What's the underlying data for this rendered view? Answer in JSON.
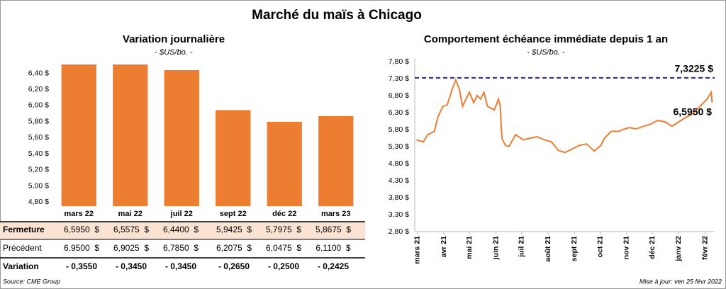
{
  "title": "Marché du maïs à Chicago",
  "chart_data": [
    {
      "type": "bar",
      "title": "Variation journalière",
      "subtitle": "- $US/bo. -",
      "categories": [
        "mars 22",
        "mai 22",
        "juil 22",
        "sept 22",
        "déc 22",
        "mars 23"
      ],
      "values": [
        6.595,
        6.5575,
        6.44,
        5.9425,
        5.7975,
        5.8675
      ],
      "color": "#ed7d31",
      "ylim": [
        4.75,
        6.51
      ],
      "yticks": [
        {
          "value": 4.8,
          "label": "4,80 $"
        },
        {
          "value": 5.0,
          "label": "5,00 $"
        },
        {
          "value": 5.2,
          "label": "5,20 $"
        },
        {
          "value": 5.4,
          "label": "5,40 $"
        },
        {
          "value": 5.6,
          "label": "5,60 $"
        },
        {
          "value": 5.8,
          "label": "5,80 $"
        },
        {
          "value": 6.0,
          "label": "6,00 $"
        },
        {
          "value": 6.2,
          "label": "6,20 $"
        },
        {
          "value": 6.4,
          "label": "6,40 $"
        }
      ]
    },
    {
      "type": "line",
      "title": "Comportement échéance immédiate depuis 1 an",
      "subtitle": "- $US/bo. -",
      "x": [
        -1,
        7,
        12,
        20,
        24,
        30,
        35,
        41,
        45,
        49,
        53,
        57,
        61,
        66,
        70,
        74,
        78,
        82,
        90,
        95,
        97,
        99,
        103,
        107,
        115,
        124,
        132,
        140,
        149,
        157,
        165,
        173,
        182,
        190,
        198,
        207,
        215,
        219,
        227,
        236,
        240,
        248,
        256,
        265,
        273,
        281,
        290,
        298,
        306,
        315,
        323,
        331,
        339,
        344,
        345
      ],
      "series": [
        {
          "color": "#ed7d31",
          "values": [
            5.5,
            5.44,
            5.65,
            5.75,
            6.17,
            6.49,
            6.53,
            7.0,
            7.26,
            7.0,
            6.49,
            6.7,
            6.9,
            6.59,
            6.8,
            6.7,
            6.9,
            6.49,
            6.38,
            6.7,
            6.49,
            5.55,
            5.34,
            5.3,
            5.65,
            5.5,
            5.55,
            5.59,
            5.5,
            5.44,
            5.19,
            5.13,
            5.24,
            5.34,
            5.38,
            5.17,
            5.34,
            5.55,
            5.75,
            5.75,
            5.8,
            5.86,
            5.82,
            5.9,
            5.96,
            6.07,
            6.03,
            5.9,
            6.03,
            6.17,
            6.28,
            6.49,
            6.7,
            6.9,
            6.595
          ]
        }
      ],
      "xlim": [
        -3,
        348
      ],
      "xticks": [
        {
          "value": 0,
          "label": "mars 21"
        },
        {
          "value": 31,
          "label": "avr 21"
        },
        {
          "value": 61,
          "label": "mai 21"
        },
        {
          "value": 92,
          "label": "juin 21"
        },
        {
          "value": 122,
          "label": "juil 21"
        },
        {
          "value": 153,
          "label": "août 21"
        },
        {
          "value": 184,
          "label": "sept 21"
        },
        {
          "value": 214,
          "label": "oct 21"
        },
        {
          "value": 245,
          "label": "nov 21"
        },
        {
          "value": 275,
          "label": "déc 21"
        },
        {
          "value": 306,
          "label": "janv 22"
        },
        {
          "value": 337,
          "label": "févr 22"
        }
      ],
      "ylim": [
        2.8,
        7.8
      ],
      "yticks": [
        {
          "value": 2.8,
          "label": "2,80 $"
        },
        {
          "value": 3.3,
          "label": "3,30 $"
        },
        {
          "value": 3.8,
          "label": "3,80 $"
        },
        {
          "value": 4.3,
          "label": "4,30 $"
        },
        {
          "value": 4.8,
          "label": "4,80 $"
        },
        {
          "value": 5.3,
          "label": "5,30 $"
        },
        {
          "value": 5.8,
          "label": "5,80 $"
        },
        {
          "value": 6.3,
          "label": "6,30 $"
        },
        {
          "value": 6.8,
          "label": "6,80 $"
        },
        {
          "value": 7.3,
          "label": "7,30 $"
        },
        {
          "value": 7.8,
          "label": "7,80 $"
        }
      ],
      "reference_line": {
        "value": 7.3225,
        "label": "7,3225 $",
        "color": "#2e1fb4"
      },
      "annotation": "6,5950 $"
    }
  ],
  "table": {
    "rows": [
      [
        "Fermeture",
        "6,5950  $",
        "6,5575  $",
        "6,4400  $",
        "5,9425  $",
        "5,7975  $",
        "5,8675  $"
      ],
      [
        "Précédent",
        "6,9500  $",
        "6,9025  $",
        "6,7850  $",
        "6,2075  $",
        "6,0475  $",
        "6,1100  $"
      ],
      [
        "Variation",
        "- 0,3550",
        "- 0,3450",
        "- 0,3450",
        "- 0,2650",
        "- 0,2500",
        "- 0,2425"
      ]
    ]
  },
  "footer": {
    "source": "Source: CME Group",
    "updated": "Mise à jour: ven 25 févr 2022"
  }
}
